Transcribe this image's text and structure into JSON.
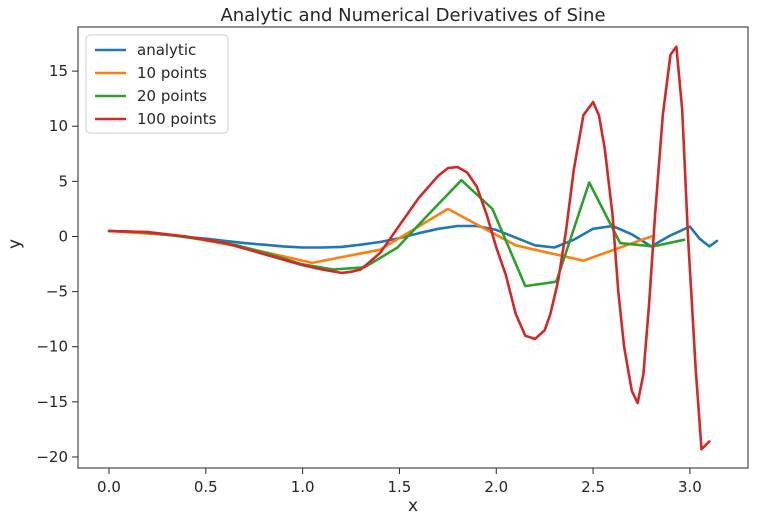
{
  "chart_data": {
    "type": "line",
    "title": "Analytic and Numerical Derivatives of Sine",
    "xlabel": "x",
    "ylabel": "y",
    "xlim": [
      -0.16,
      3.3
    ],
    "ylim": [
      -21,
      19
    ],
    "xticks": [
      0.0,
      0.5,
      1.0,
      1.5,
      2.0,
      2.5,
      3.0
    ],
    "xtick_labels": [
      "0.0",
      "0.5",
      "1.0",
      "1.5",
      "2.0",
      "2.5",
      "3.0"
    ],
    "yticks": [
      -20,
      -15,
      -10,
      -5,
      0,
      5,
      10,
      15
    ],
    "ytick_labels": [
      "−20",
      "−15",
      "−10",
      "−5",
      "0",
      "5",
      "10",
      "15"
    ],
    "grid": false,
    "legend_position": "top-left",
    "series": [
      {
        "name": "analytic",
        "color": "#1f77b4",
        "x": [
          0.0,
          0.1,
          0.2,
          0.3,
          0.4,
          0.5,
          0.6,
          0.7,
          0.8,
          0.9,
          1.0,
          1.1,
          1.2,
          1.3,
          1.4,
          1.5,
          1.6,
          1.7,
          1.8,
          1.9,
          2.0,
          2.1,
          2.2,
          2.3,
          2.4,
          2.5,
          2.6,
          2.7,
          2.8,
          2.9,
          3.0,
          3.05,
          3.1,
          3.14
        ],
        "y": [
          0.5,
          0.45,
          0.3,
          0.15,
          -0.05,
          -0.2,
          -0.4,
          -0.6,
          -0.75,
          -0.9,
          -1.0,
          -1.0,
          -0.95,
          -0.75,
          -0.5,
          -0.15,
          0.3,
          0.7,
          0.95,
          0.95,
          0.6,
          -0.1,
          -0.8,
          -1.0,
          -0.3,
          0.7,
          0.95,
          0.2,
          -0.9,
          0.1,
          0.9,
          -0.2,
          -0.9,
          -0.4
        ]
      },
      {
        "name": "10 points",
        "color": "#ff7f0e",
        "x": [
          0.0,
          0.35,
          0.7,
          1.05,
          1.4,
          1.75,
          2.1,
          2.45,
          2.8
        ],
        "y": [
          0.5,
          0.1,
          -1.0,
          -2.4,
          -1.2,
          2.5,
          -0.8,
          -2.2,
          0.0
        ]
      },
      {
        "name": "20 points",
        "color": "#2ca02c",
        "x": [
          0.0,
          0.17,
          0.33,
          0.5,
          0.66,
          0.83,
          0.99,
          1.16,
          1.32,
          1.49,
          1.65,
          1.82,
          1.98,
          2.15,
          2.31,
          2.48,
          2.64,
          2.81,
          2.97
        ],
        "y": [
          0.5,
          0.4,
          0.1,
          -0.3,
          -0.8,
          -1.6,
          -2.5,
          -3.0,
          -2.8,
          -1.0,
          2.0,
          5.1,
          2.5,
          -4.5,
          -4.1,
          4.9,
          -0.6,
          -0.9,
          -0.3
        ]
      },
      {
        "name": "100 points",
        "color": "#d62728",
        "x": [
          0.0,
          0.2,
          0.4,
          0.6,
          0.8,
          1.0,
          1.1,
          1.2,
          1.25,
          1.3,
          1.4,
          1.5,
          1.6,
          1.7,
          1.75,
          1.8,
          1.85,
          1.9,
          1.95,
          2.0,
          2.05,
          2.1,
          2.15,
          2.2,
          2.25,
          2.28,
          2.32,
          2.36,
          2.4,
          2.45,
          2.5,
          2.53,
          2.56,
          2.6,
          2.63,
          2.66,
          2.7,
          2.73,
          2.76,
          2.79,
          2.82,
          2.86,
          2.9,
          2.93,
          2.96,
          2.99,
          3.03,
          3.06,
          3.1
        ],
        "y": [
          0.5,
          0.4,
          0.0,
          -0.6,
          -1.6,
          -2.6,
          -3.0,
          -3.3,
          -3.2,
          -3.0,
          -1.5,
          1.0,
          3.5,
          5.5,
          6.2,
          6.3,
          5.8,
          4.5,
          2.0,
          -1.0,
          -3.5,
          -7.0,
          -9.0,
          -9.3,
          -8.5,
          -7.0,
          -4.0,
          0.5,
          6.0,
          11.0,
          12.2,
          11.0,
          8.0,
          2.0,
          -5.0,
          -10.0,
          -14.0,
          -15.1,
          -12.5,
          -6.0,
          2.0,
          11.0,
          16.5,
          17.2,
          11.5,
          0.0,
          -12.0,
          -19.3,
          -18.6
        ]
      }
    ]
  }
}
